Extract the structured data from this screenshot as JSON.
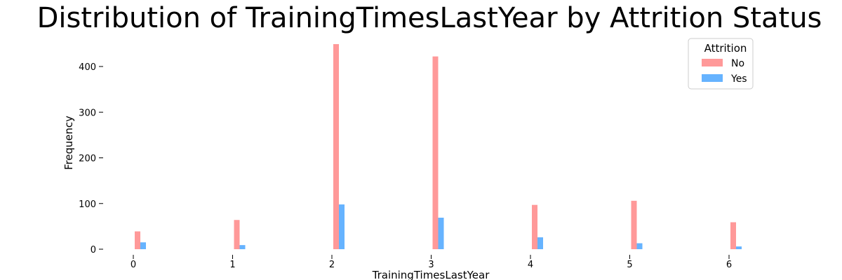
{
  "chart_data": {
    "type": "bar",
    "title": "Distribution of TrainingTimesLastYear by Attrition Status",
    "xlabel": "TrainingTimesLastYear",
    "ylabel": "Frequency",
    "x_ticks": [
      "0",
      "1",
      "2",
      "3",
      "4",
      "5",
      "6"
    ],
    "y_ticks": [
      "0",
      "100",
      "200",
      "300",
      "400"
    ],
    "xlim": [
      -0.3,
      6.8
    ],
    "ylim": [
      0,
      450
    ],
    "grid": false,
    "legend": {
      "title": "Attrition",
      "placement": "top-right"
    },
    "series": [
      {
        "name": "No",
        "color": "#ff9999",
        "x": [
          0,
          1,
          2,
          3,
          4,
          5,
          6
        ],
        "values": [
          39,
          64,
          449,
          422,
          97,
          106,
          59
        ]
      },
      {
        "name": "Yes",
        "color": "#66b3ff",
        "x": [
          0,
          1,
          2,
          3,
          4,
          5,
          6
        ],
        "values": [
          15,
          9,
          98,
          69,
          26,
          13,
          6
        ]
      }
    ]
  }
}
